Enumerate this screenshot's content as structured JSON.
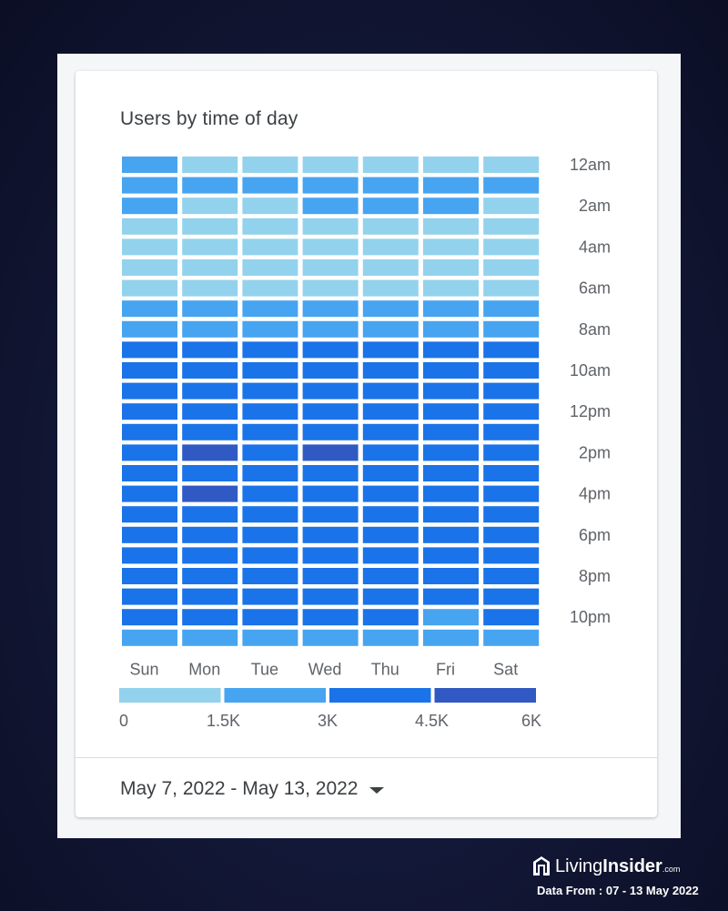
{
  "card": {
    "title": "Users by time of day",
    "date_range": "May 7, 2022 - May 13, 2022"
  },
  "brand": {
    "name_light": "Living",
    "name_bold": "Insider",
    "suffix": ".com",
    "source_note": "Data From : 07 - 13 May 2022"
  },
  "colors": {
    "bin_1": "#93d2ec",
    "bin_2": "#47a4f0",
    "bin_3": "#1a73e8",
    "bin_4": "#3159c3"
  },
  "chart_data": {
    "type": "heatmap",
    "title": "Users by time of day",
    "x": [
      "Sun",
      "Mon",
      "Tue",
      "Wed",
      "Thu",
      "Fri",
      "Sat"
    ],
    "y": [
      "12am",
      "1am",
      "2am",
      "3am",
      "4am",
      "5am",
      "6am",
      "7am",
      "8am",
      "9am",
      "10am",
      "11am",
      "12pm",
      "1pm",
      "2pm",
      "3pm",
      "4pm",
      "5pm",
      "6pm",
      "7pm",
      "8pm",
      "9pm",
      "10pm",
      "11pm"
    ],
    "y_tick_labels": [
      "12am",
      "2am",
      "4am",
      "6am",
      "8am",
      "10am",
      "12pm",
      "2pm",
      "4pm",
      "6pm",
      "8pm",
      "10pm"
    ],
    "legend_ticks": [
      "0",
      "1.5K",
      "3K",
      "4.5K",
      "6K"
    ],
    "scale_range": [
      0,
      6000
    ],
    "values": [
      [
        2200,
        1100,
        1100,
        1100,
        1100,
        1100,
        1100
      ],
      [
        2200,
        2200,
        2200,
        2200,
        2200,
        2200,
        2200
      ],
      [
        2200,
        1100,
        1100,
        2200,
        2200,
        2200,
        1100
      ],
      [
        1100,
        1100,
        1100,
        1100,
        1100,
        1100,
        1100
      ],
      [
        1100,
        1100,
        1100,
        1100,
        1100,
        1100,
        1100
      ],
      [
        1100,
        1100,
        1100,
        1100,
        1100,
        1100,
        1100
      ],
      [
        1100,
        1100,
        1100,
        1100,
        1100,
        1100,
        1100
      ],
      [
        2200,
        2200,
        2200,
        2200,
        2200,
        2200,
        2200
      ],
      [
        2200,
        2200,
        2200,
        2200,
        2200,
        2200,
        2200
      ],
      [
        3700,
        3700,
        3700,
        3700,
        3700,
        3700,
        3700
      ],
      [
        3700,
        3700,
        3700,
        3700,
        3700,
        3700,
        3700
      ],
      [
        3700,
        3700,
        3700,
        3700,
        3700,
        3700,
        3700
      ],
      [
        3700,
        3700,
        3700,
        3700,
        3700,
        3700,
        3700
      ],
      [
        3700,
        3700,
        3700,
        3700,
        3700,
        3700,
        3700
      ],
      [
        3700,
        5200,
        3700,
        5200,
        3700,
        3700,
        3700
      ],
      [
        3700,
        3700,
        3700,
        3700,
        3700,
        3700,
        3700
      ],
      [
        3700,
        5200,
        3700,
        3700,
        3700,
        3700,
        3700
      ],
      [
        3700,
        3700,
        3700,
        3700,
        3700,
        3700,
        3700
      ],
      [
        3700,
        3700,
        3700,
        3700,
        3700,
        3700,
        3700
      ],
      [
        3700,
        3700,
        3700,
        3700,
        3700,
        3700,
        3700
      ],
      [
        3700,
        3700,
        3700,
        3700,
        3700,
        3700,
        3700
      ],
      [
        3700,
        3700,
        3700,
        3700,
        3700,
        3700,
        3700
      ],
      [
        3700,
        3700,
        3700,
        3700,
        3700,
        2200,
        3700
      ],
      [
        2200,
        2200,
        2200,
        2200,
        2200,
        2200,
        2200
      ]
    ]
  }
}
